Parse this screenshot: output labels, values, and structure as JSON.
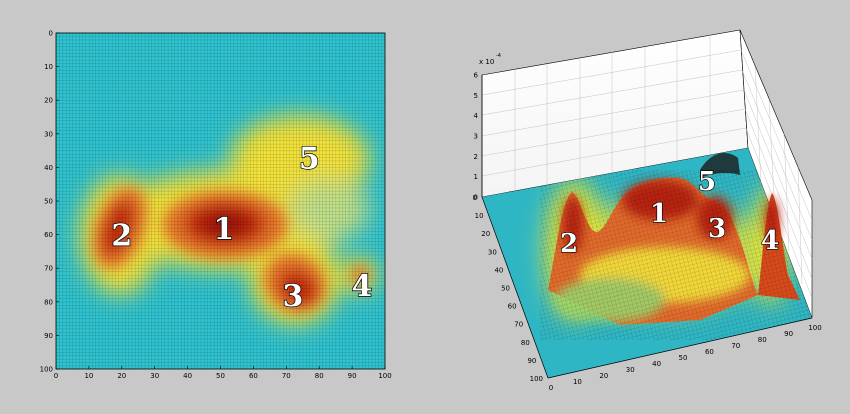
{
  "chart_data": [
    {
      "type": "heatmap",
      "x_ticks": [
        "0",
        "10",
        "20",
        "30",
        "40",
        "50",
        "60",
        "70",
        "80",
        "90",
        "100"
      ],
      "y_ticks": [
        "0",
        "10",
        "20",
        "30",
        "40",
        "50",
        "60",
        "70",
        "80",
        "90",
        "100"
      ],
      "xlim": [
        0,
        100
      ],
      "ylim": [
        0,
        100
      ],
      "y_reversed": true,
      "grid": true,
      "colormap": "jet",
      "peaks": [
        {
          "label": "1",
          "x": 51,
          "y": 58
        },
        {
          "label": "2",
          "x": 20,
          "y": 60
        },
        {
          "label": "3",
          "x": 72,
          "y": 78
        },
        {
          "label": "4",
          "x": 93,
          "y": 75
        },
        {
          "label": "5",
          "x": 77,
          "y": 37
        }
      ]
    },
    {
      "type": "surface",
      "z_multiplier": "x 10",
      "z_exponent": "-4",
      "z_ticks": [
        "0",
        "1",
        "2",
        "3",
        "4",
        "5",
        "6"
      ],
      "zlim": [
        0,
        6
      ],
      "x_ticks": [
        "0",
        "10",
        "20",
        "30",
        "40",
        "50",
        "60",
        "70",
        "80",
        "90",
        "100"
      ],
      "y_ticks": [
        "0",
        "10",
        "20",
        "30",
        "40",
        "50",
        "60",
        "70",
        "80",
        "90",
        "100"
      ],
      "grid": true,
      "colormap": "jet",
      "peak_labels": [
        "1",
        "2",
        "3",
        "4",
        "5"
      ]
    }
  ],
  "colors": {
    "background": "#c8c8c8",
    "low": "#2fc3d0",
    "mid": "#f2e23a",
    "high": "#b81c0c"
  }
}
